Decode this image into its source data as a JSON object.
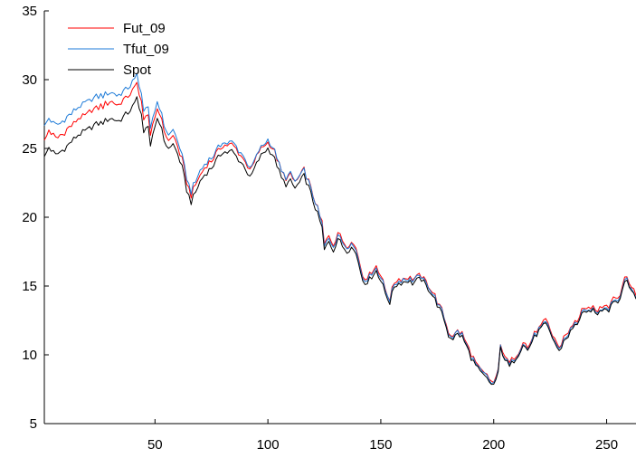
{
  "chart_data": {
    "type": "line",
    "title": "",
    "xlabel": "",
    "ylabel": "",
    "xlim": [
      1,
      263
    ],
    "ylim": [
      5,
      35
    ],
    "xticks": [
      50,
      100,
      150,
      200,
      250
    ],
    "yticks": [
      5,
      10,
      15,
      20,
      25,
      30,
      35
    ],
    "grid": false,
    "legend_position": "top-left",
    "spot_keypoints": [
      [
        1,
        24.3
      ],
      [
        3,
        25.1
      ],
      [
        6,
        24.5
      ],
      [
        10,
        25.0
      ],
      [
        13,
        25.5
      ],
      [
        16,
        26.0
      ],
      [
        20,
        26.3
      ],
      [
        23,
        26.7
      ],
      [
        27,
        26.9
      ],
      [
        30,
        27.2
      ],
      [
        34,
        27.0
      ],
      [
        38,
        27.6
      ],
      [
        41,
        28.2
      ],
      [
        42,
        28.7
      ],
      [
        44,
        27.5
      ],
      [
        45,
        26.0
      ],
      [
        47,
        26.8
      ],
      [
        48,
        25.2
      ],
      [
        50,
        26.4
      ],
      [
        51,
        27.2
      ],
      [
        53,
        26.5
      ],
      [
        55,
        25.0
      ],
      [
        58,
        25.3
      ],
      [
        60,
        24.6
      ],
      [
        62,
        23.6
      ],
      [
        64,
        22.0
      ],
      [
        66,
        21.1
      ],
      [
        68,
        21.8
      ],
      [
        70,
        22.6
      ],
      [
        72,
        23.1
      ],
      [
        75,
        23.6
      ],
      [
        78,
        24.3
      ],
      [
        80,
        24.8
      ],
      [
        82,
        24.7
      ],
      [
        84,
        24.8
      ],
      [
        86,
        24.4
      ],
      [
        88,
        24.0
      ],
      [
        90,
        23.6
      ],
      [
        92,
        22.8
      ],
      [
        94,
        23.5
      ],
      [
        96,
        24.2
      ],
      [
        98,
        24.7
      ],
      [
        100,
        25.0
      ],
      [
        102,
        24.6
      ],
      [
        104,
        23.8
      ],
      [
        106,
        22.8
      ],
      [
        108,
        22.4
      ],
      [
        110,
        22.6
      ],
      [
        112,
        22.1
      ],
      [
        114,
        22.5
      ],
      [
        116,
        23.0
      ],
      [
        118,
        22.2
      ],
      [
        120,
        21.2
      ],
      [
        122,
        20.2
      ],
      [
        124,
        19.2
      ],
      [
        125,
        17.6
      ],
      [
        127,
        18.2
      ],
      [
        129,
        17.6
      ],
      [
        131,
        18.5
      ],
      [
        133,
        17.9
      ],
      [
        135,
        17.6
      ],
      [
        137,
        17.8
      ],
      [
        139,
        17.4
      ],
      [
        141,
        16.2
      ],
      [
        143,
        14.9
      ],
      [
        145,
        15.8
      ],
      [
        146,
        15.5
      ],
      [
        148,
        16.2
      ],
      [
        150,
        15.4
      ],
      [
        152,
        14.5
      ],
      [
        154,
        13.8
      ],
      [
        156,
        15.0
      ],
      [
        158,
        15.2
      ],
      [
        160,
        15.3
      ],
      [
        162,
        15.4
      ],
      [
        164,
        15.2
      ],
      [
        166,
        15.4
      ],
      [
        168,
        15.5
      ],
      [
        170,
        15.0
      ],
      [
        172,
        14.6
      ],
      [
        174,
        14.0
      ],
      [
        176,
        13.3
      ],
      [
        178,
        12.6
      ],
      [
        180,
        11.4
      ],
      [
        182,
        11.2
      ],
      [
        184,
        11.5
      ],
      [
        186,
        11.3
      ],
      [
        188,
        10.6
      ],
      [
        190,
        9.8
      ],
      [
        192,
        9.2
      ],
      [
        194,
        8.7
      ],
      [
        196,
        8.4
      ],
      [
        198,
        8.0
      ],
      [
        200,
        7.8
      ],
      [
        202,
        8.6
      ],
      [
        203,
        10.5
      ],
      [
        205,
        9.7
      ],
      [
        207,
        9.1
      ],
      [
        209,
        9.6
      ],
      [
        211,
        10.1
      ],
      [
        213,
        10.8
      ],
      [
        215,
        10.3
      ],
      [
        217,
        11.0
      ],
      [
        219,
        11.5
      ],
      [
        221,
        11.9
      ],
      [
        223,
        12.2
      ],
      [
        225,
        11.6
      ],
      [
        227,
        10.9
      ],
      [
        229,
        10.2
      ],
      [
        231,
        11.0
      ],
      [
        233,
        11.4
      ],
      [
        235,
        11.9
      ],
      [
        237,
        12.3
      ],
      [
        239,
        13.0
      ],
      [
        241,
        12.9
      ],
      [
        243,
        13.3
      ],
      [
        245,
        13.0
      ],
      [
        247,
        13.1
      ],
      [
        249,
        13.5
      ],
      [
        251,
        13.3
      ],
      [
        253,
        14.0
      ],
      [
        255,
        13.8
      ],
      [
        257,
        14.8
      ],
      [
        259,
        15.4
      ],
      [
        261,
        14.7
      ],
      [
        263,
        14.1
      ]
    ],
    "series": [
      {
        "name": "Fut_09",
        "color": "#ff0000",
        "offset_keypoints": [
          [
            1,
            1.2
          ],
          [
            40,
            1.2
          ],
          [
            50,
            0.7
          ],
          [
            65,
            0.5
          ],
          [
            100,
            0.5
          ],
          [
            125,
            0.4
          ],
          [
            150,
            0.3
          ],
          [
            200,
            0.2
          ],
          [
            263,
            0.3
          ]
        ]
      },
      {
        "name": "Tfut_09",
        "color": "#1e7bd8",
        "offset_keypoints": [
          [
            1,
            2.2
          ],
          [
            40,
            1.8
          ],
          [
            50,
            1.2
          ],
          [
            65,
            0.8
          ],
          [
            100,
            0.6
          ],
          [
            125,
            0.3
          ],
          [
            150,
            0.2
          ],
          [
            200,
            0.1
          ],
          [
            263,
            0.1
          ]
        ]
      },
      {
        "name": "Spot",
        "color": "#000000",
        "offset_keypoints": [
          [
            1,
            0
          ],
          [
            263,
            0
          ]
        ]
      }
    ]
  }
}
